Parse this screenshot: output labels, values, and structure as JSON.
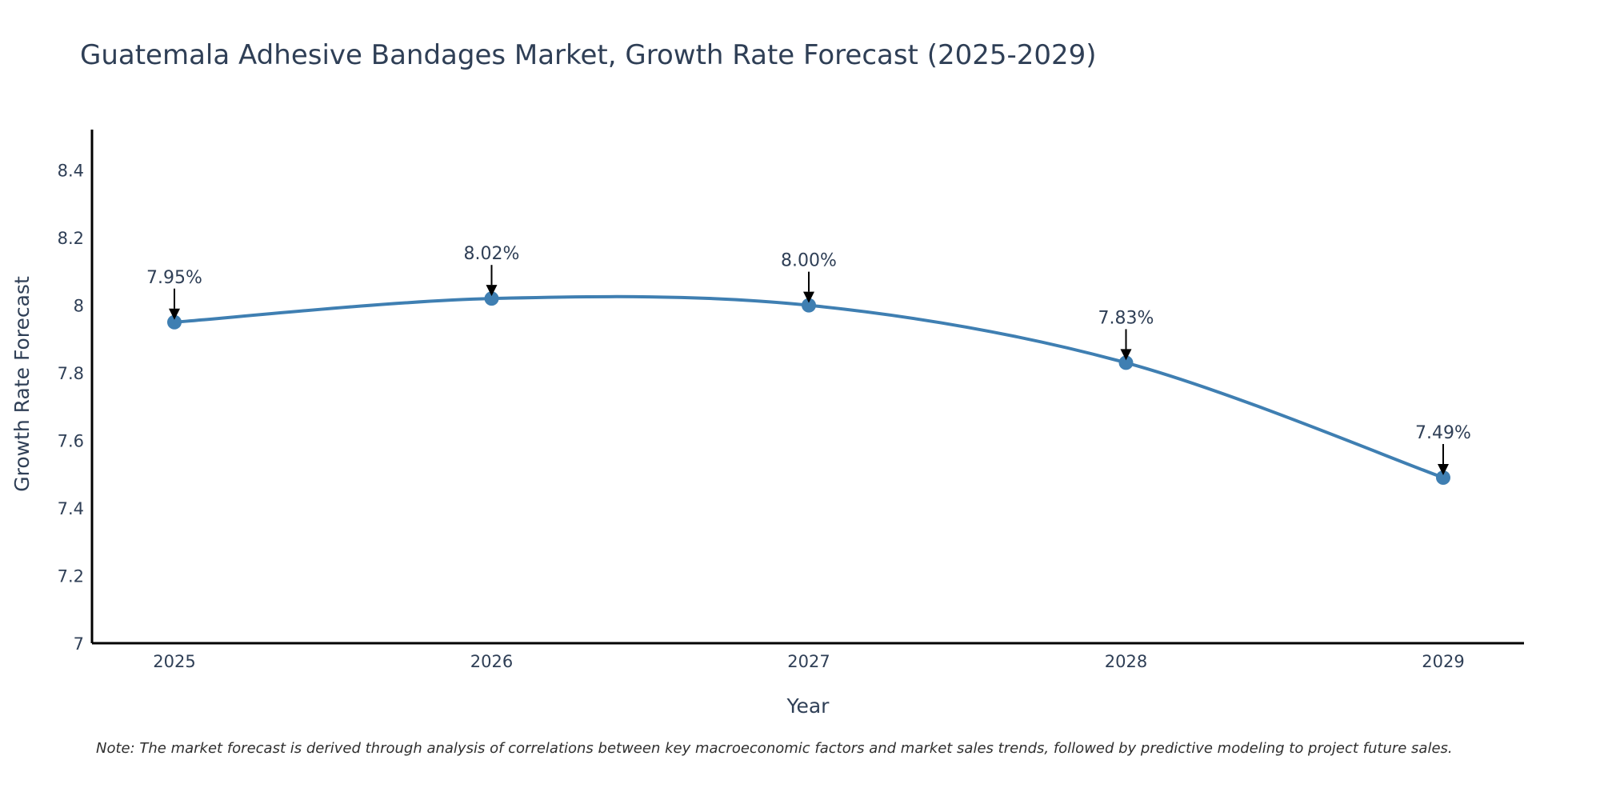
{
  "chart_data": {
    "type": "line",
    "title": "Guatemala Adhesive Bandages Market, Growth Rate Forecast (2025-2029)",
    "xlabel": "Year",
    "ylabel": "Growth Rate Forecast",
    "x": [
      "2025",
      "2026",
      "2027",
      "2028",
      "2029"
    ],
    "y_tick_labels": [
      "7",
      "7.2",
      "7.4",
      "7.6",
      "7.8",
      "8",
      "8.2",
      "8.4"
    ],
    "ylim": [
      7,
      8.52
    ],
    "grid": false,
    "series": [
      {
        "name": "Growth Rate Forecast",
        "values": [
          7.95,
          8.02,
          8.0,
          7.83,
          7.49
        ],
        "labels": [
          "7.95%",
          "8.02%",
          "8.00%",
          "7.83%",
          "7.49%"
        ]
      }
    ],
    "note": "Note: The market forecast is derived through analysis of correlations between key macroeconomic factors and market sales trends, followed by predictive modeling to project future sales."
  },
  "colors": {
    "series_line": "#3f7fb2",
    "axis": "#000000",
    "text": "#2f3f56"
  }
}
